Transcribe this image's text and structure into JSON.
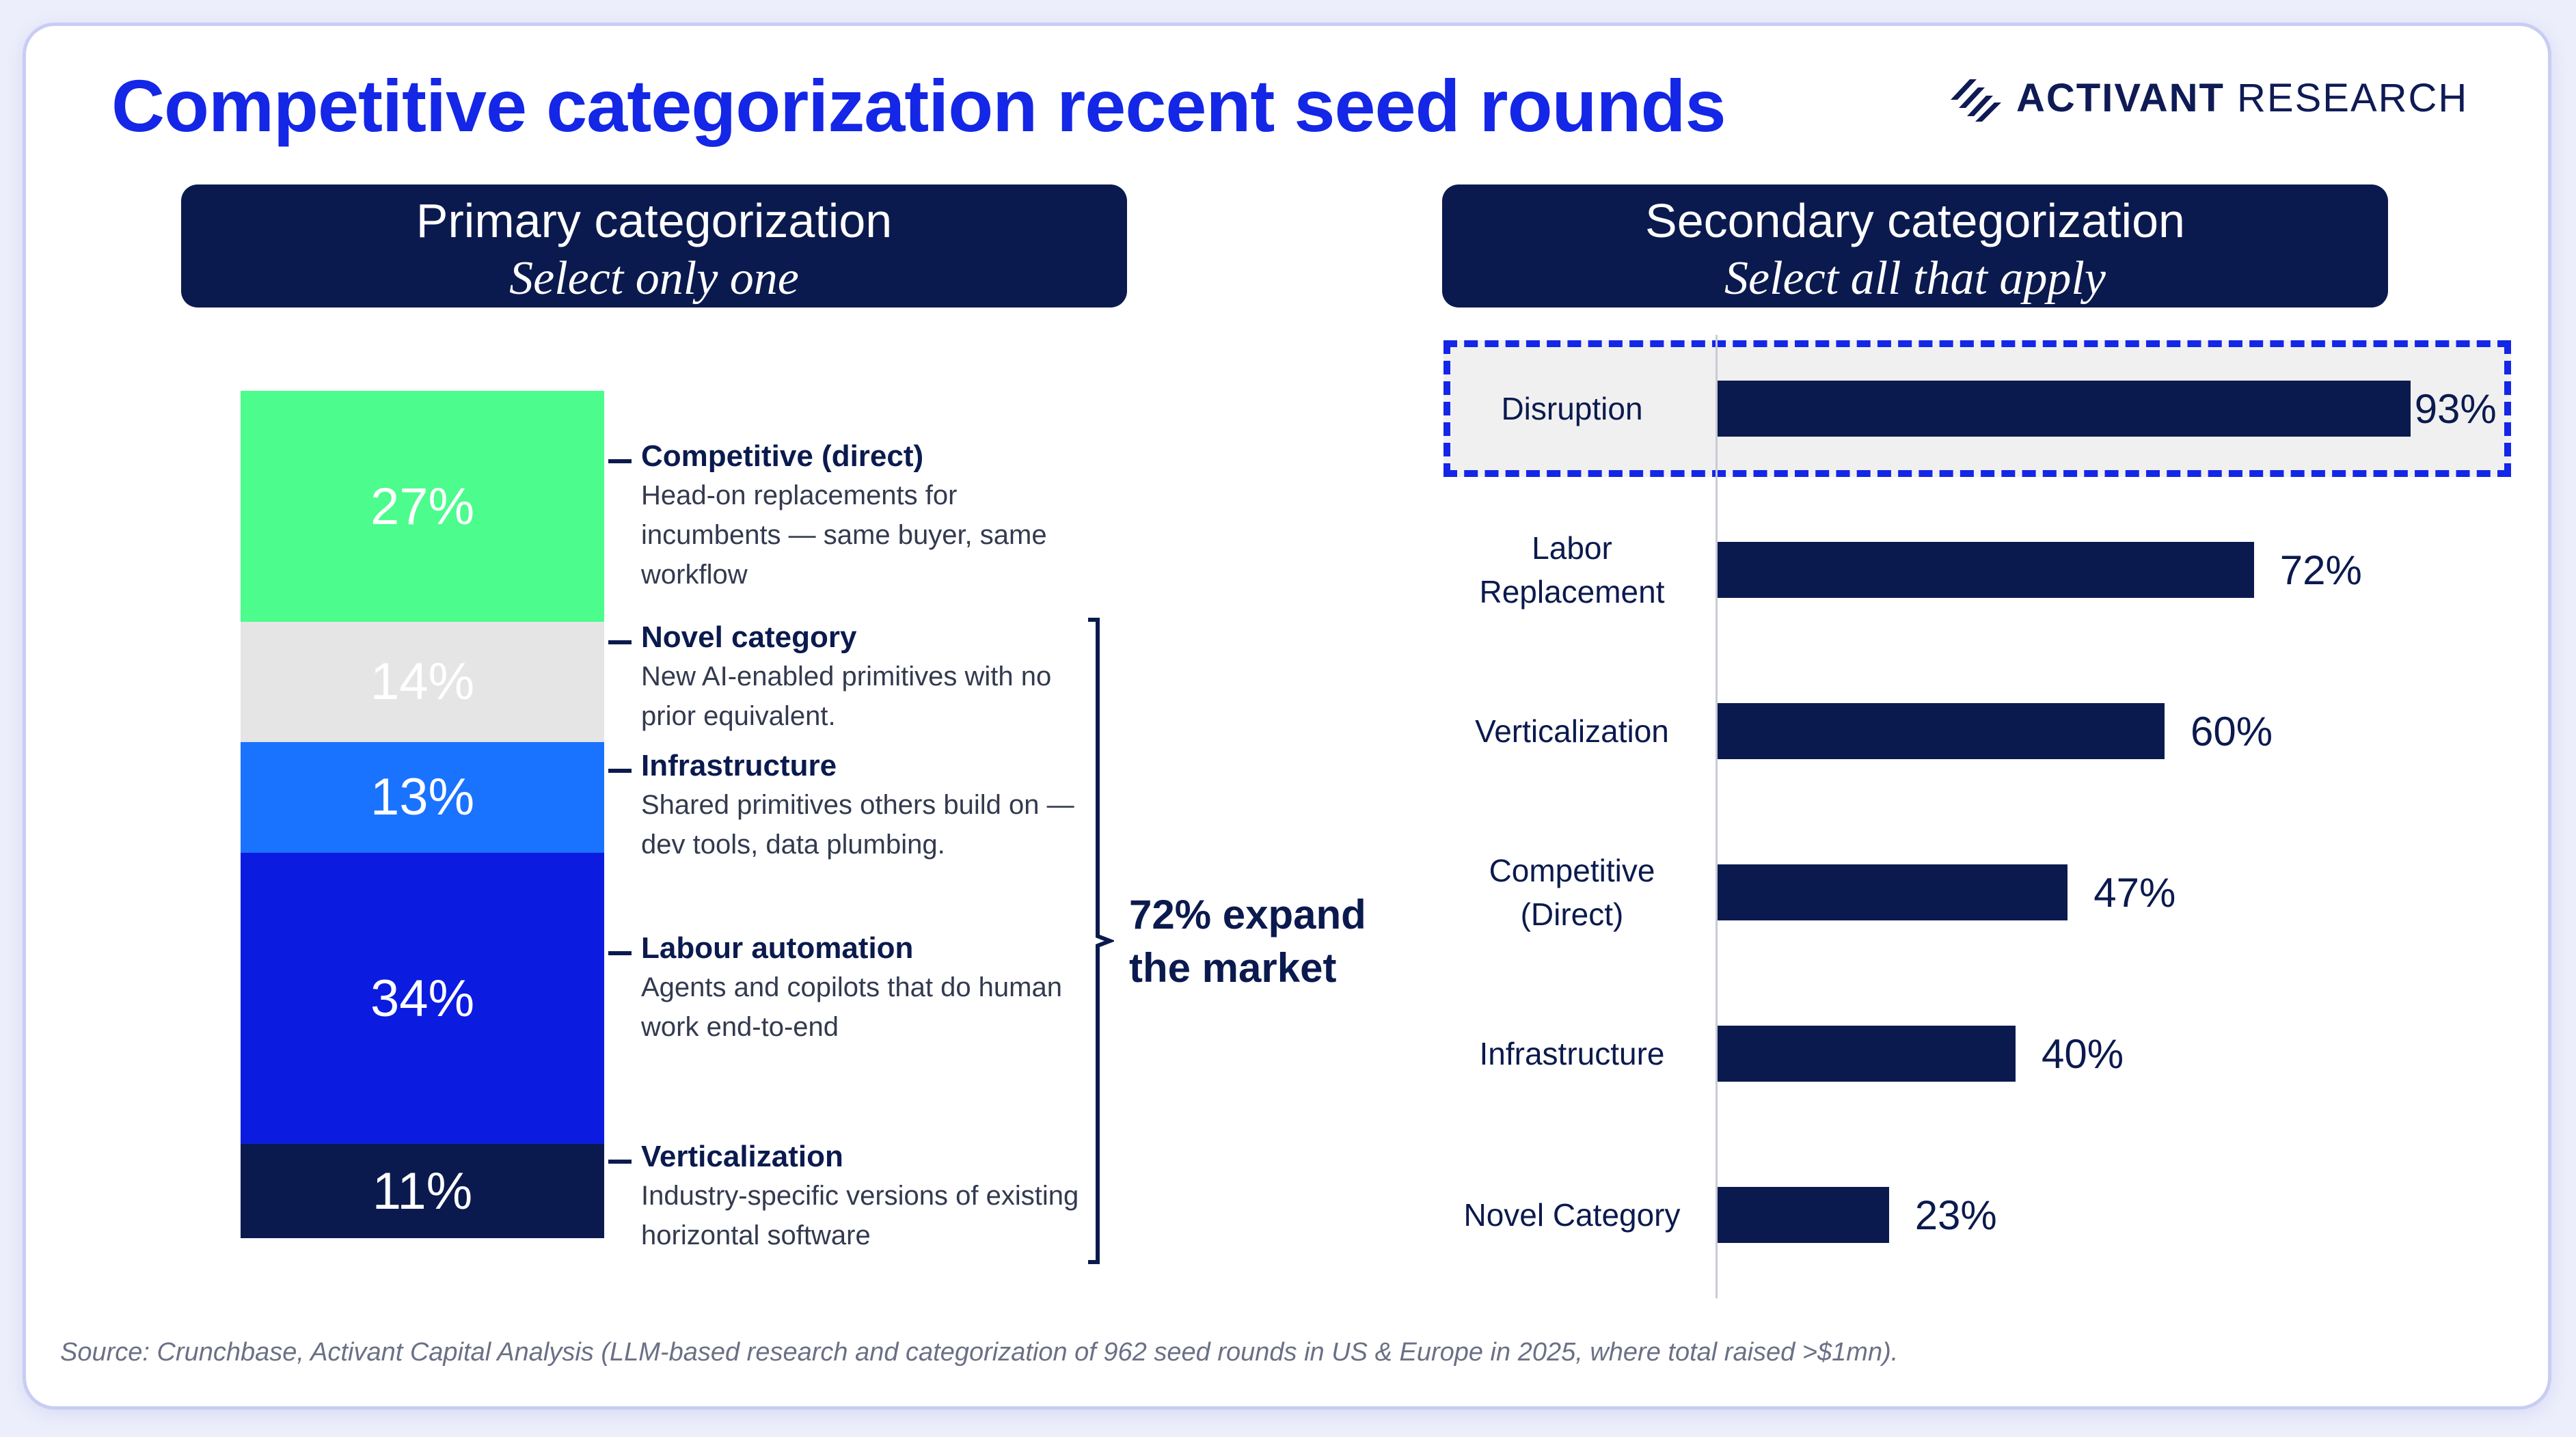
{
  "title": "Competitive categorization recent seed rounds",
  "brand": {
    "bold": "ACTIVANT",
    "rest": " RESEARCH",
    "logo_icon": "stripes-logo-icon"
  },
  "primary_header": {
    "title": "Primary categorization",
    "subtitle": "Select only one"
  },
  "secondary_header": {
    "title": "Secondary categorization",
    "subtitle": "Select all that apply"
  },
  "expand_label": [
    "72% expand",
    "the market"
  ],
  "source": "Source: Crunchbase, Activant Capital Analysis (LLM-based research and categorization of 962 seed rounds in US & Europe in 2025, where total raised >$1mn).",
  "colors": {
    "navy": "#0b1a4e",
    "brand_blue": "#1426e6",
    "competitive": "#4cfc8c",
    "novel": "#e5e5e5",
    "infrastructure": "#1a73ff",
    "labour": "#0b1ce0",
    "verticalization": "#0b1a4e"
  },
  "chart_data": [
    {
      "type": "bar",
      "subtype": "stacked-100",
      "title": "Primary categorization",
      "subtitle": "Select only one",
      "categories": [
        "Competitive (direct)",
        "Novel category",
        "Infrastructure",
        "Labour automation",
        "Verticalization"
      ],
      "values": [
        27,
        14,
        13,
        34,
        11
      ],
      "value_labels": [
        "27%",
        "14%",
        "13%",
        "34%",
        "11%"
      ],
      "descriptions": [
        "Head-on replacements for incumbents — same buyer, same workflow",
        "New AI-enabled primitives with no prior equivalent.",
        "Shared primitives others build on — dev tools, data plumbing.",
        "Agents and copilots that do human work end-to-end",
        "Industry-specific versions of existing horizontal software"
      ],
      "colors": [
        "#4cfc8c",
        "#e5e5e5",
        "#1a73ff",
        "#0b1ce0",
        "#0b1a4e"
      ],
      "label_colors": [
        "#ffffff",
        "#ffffff",
        "#ffffff",
        "#ffffff",
        "#ffffff"
      ],
      "annotation": "72% expand the market"
    },
    {
      "type": "bar",
      "orientation": "horizontal",
      "title": "Secondary categorization",
      "subtitle": "Select all that apply",
      "categories": [
        [
          "Disruption"
        ],
        [
          "Labor",
          "Replacement"
        ],
        [
          "Verticalization"
        ],
        [
          "Competitive",
          "(Direct)"
        ],
        [
          "Infrastructure"
        ],
        [
          "Novel Category"
        ]
      ],
      "values": [
        93,
        72,
        60,
        47,
        40,
        23
      ],
      "value_labels": [
        "93%",
        "72%",
        "60%",
        "47%",
        "40%",
        "23%"
      ],
      "xlim": [
        0,
        100
      ],
      "highlight": "Disruption",
      "color": "#0b1a4e",
      "grid": false
    }
  ]
}
